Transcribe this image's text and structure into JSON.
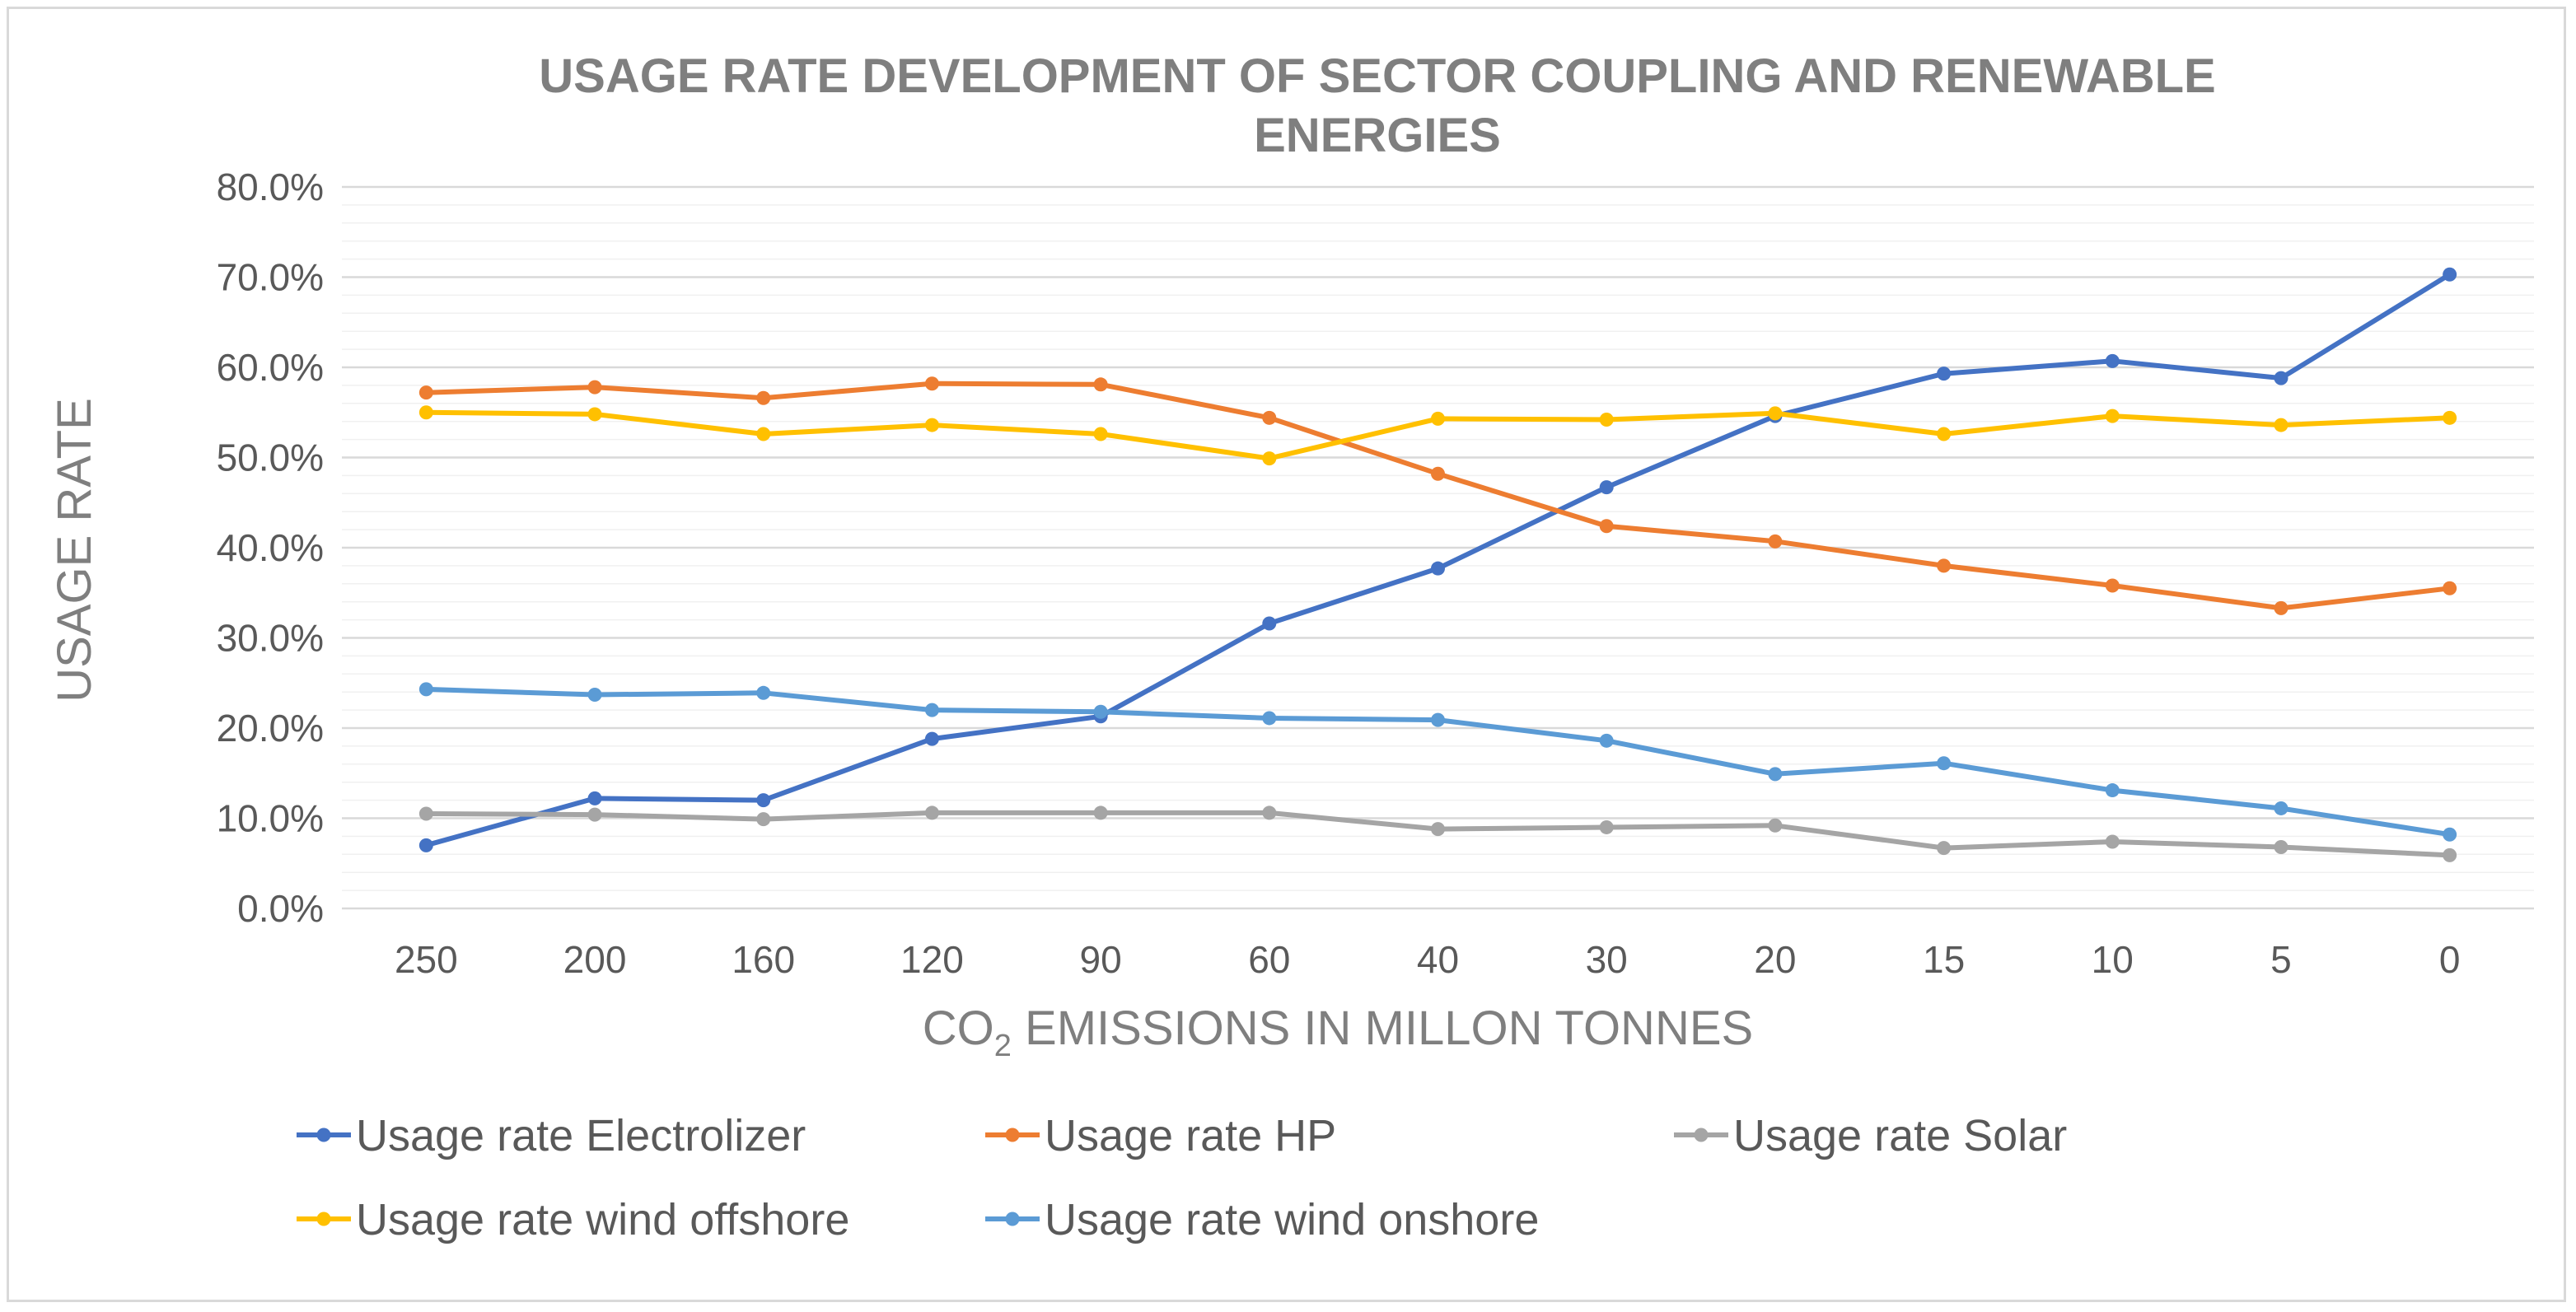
{
  "chart_data": {
    "type": "line",
    "title_lines": [
      "USAGE RATE DEVELOPMENT OF SECTOR COUPLING AND RENEWABLE",
      "ENERGIES"
    ],
    "ylabel": "USAGE RATE",
    "xlabel": {
      "prefix": "CO",
      "subscript": "2",
      "suffix": " EMISSIONS IN MILLON TONNES"
    },
    "categories": [
      "250",
      "200",
      "160",
      "120",
      "90",
      "60",
      "40",
      "30",
      "20",
      "15",
      "10",
      "5",
      "0"
    ],
    "ylim": [
      0,
      80
    ],
    "y_ticks": [
      0,
      10,
      20,
      30,
      40,
      50,
      60,
      70,
      80
    ],
    "y_tick_labels": [
      "0.0%",
      "10.0%",
      "20.0%",
      "30.0%",
      "40.0%",
      "50.0%",
      "60.0%",
      "70.0%",
      "80.0%"
    ],
    "legend_position": "bottom",
    "series": [
      {
        "name": "Usage rate Electrolizer",
        "color": "#4472c4",
        "values": [
          7.0,
          12.2,
          12.0,
          18.8,
          21.3,
          31.6,
          37.7,
          46.7,
          54.6,
          59.3,
          60.7,
          58.8,
          70.3
        ]
      },
      {
        "name": "Usage rate HP",
        "color": "#ed7d31",
        "values": [
          57.2,
          57.8,
          56.6,
          58.2,
          58.1,
          54.4,
          48.2,
          42.4,
          40.7,
          38.0,
          35.8,
          33.3,
          35.5
        ]
      },
      {
        "name": "Usage rate Solar",
        "color": "#a5a5a5",
        "values": [
          10.5,
          10.4,
          9.9,
          10.6,
          10.6,
          10.6,
          8.8,
          9.0,
          9.2,
          6.7,
          7.4,
          6.8,
          5.9
        ]
      },
      {
        "name": "Usage rate wind offshore",
        "color": "#ffc000",
        "values": [
          55.0,
          54.8,
          52.6,
          53.6,
          52.6,
          49.9,
          54.3,
          54.2,
          54.9,
          52.6,
          54.6,
          53.6,
          54.4
        ]
      },
      {
        "name": "Usage rate wind onshore",
        "color": "#5b9bd5",
        "values": [
          24.3,
          23.7,
          23.9,
          22.0,
          21.8,
          21.1,
          20.9,
          18.6,
          14.9,
          16.1,
          13.1,
          11.1,
          8.2
        ]
      }
    ]
  }
}
